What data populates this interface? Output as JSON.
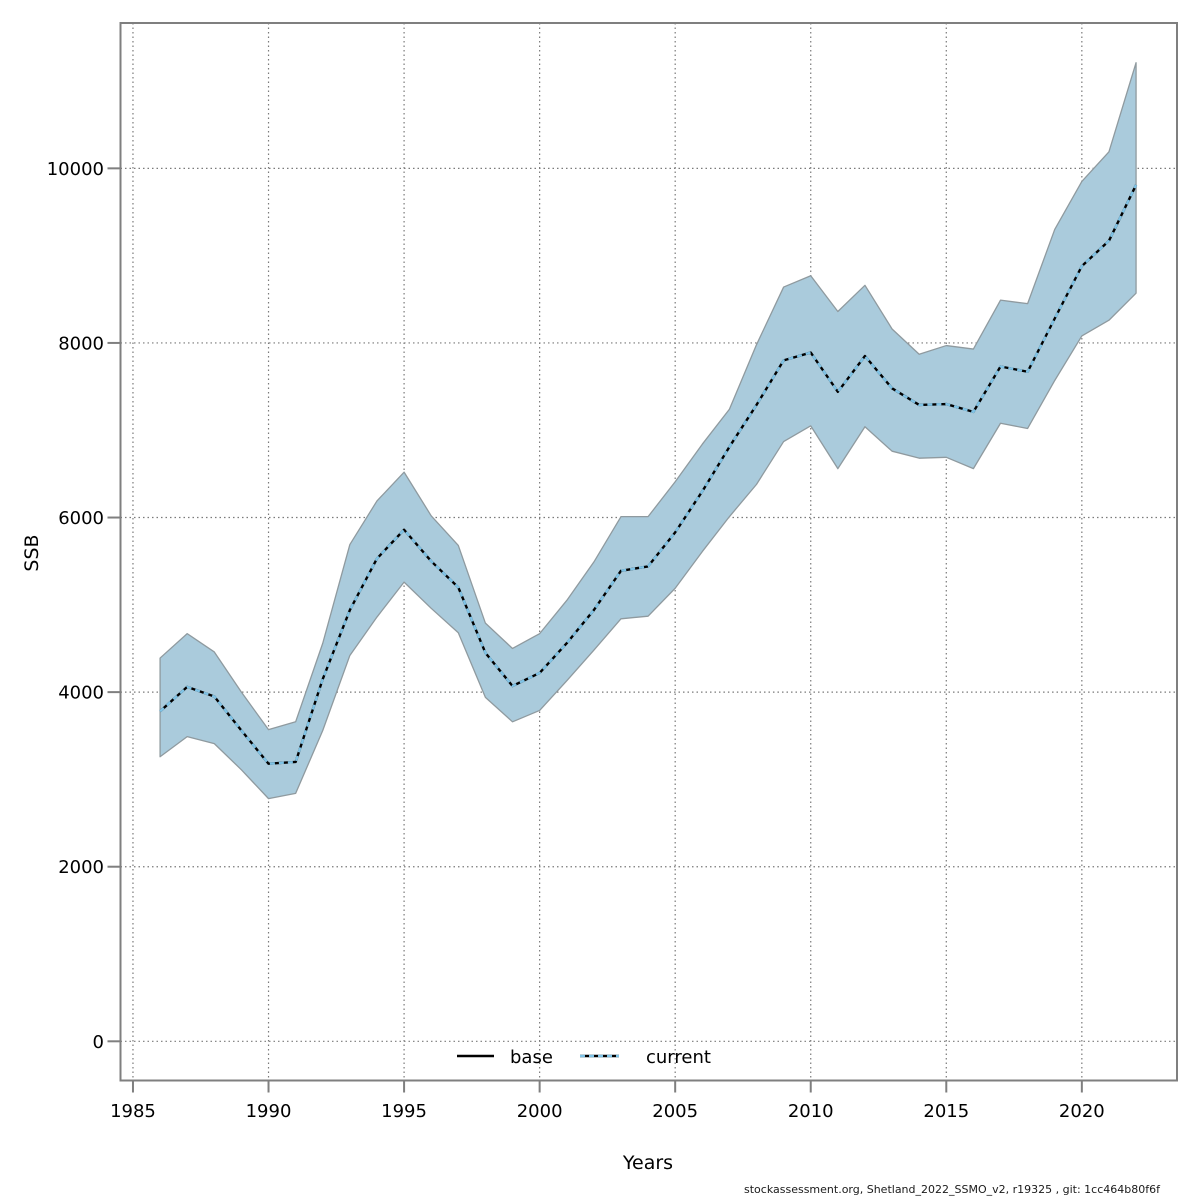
{
  "figure": {
    "footer": "stockassessment.org, Shetland_2022_SSMO_v2, r19325 , git: 1cc464b80f6f"
  },
  "legend": {
    "base_label": "base",
    "current_label": "current"
  },
  "axes": {
    "xlabel": "Years",
    "ylabel": "SSB"
  },
  "colors": {
    "band_fill": "#aacbdc",
    "band_edge": "#8f9a9f",
    "base_line": "#000000",
    "current_line": "#7fc3e6",
    "grid": "#7a7a7a",
    "frame": "#7f7f7f",
    "tick": "#7f7f7f"
  },
  "chart_data": {
    "type": "line",
    "title": "",
    "xlabel": "Years",
    "ylabel": "SSB",
    "grid": "dotted",
    "legend_position": "bottom-center",
    "x_ticks": [
      1985,
      1990,
      1995,
      2000,
      2005,
      2010,
      2015,
      2020
    ],
    "y_ticks": [
      0,
      2000,
      4000,
      6000,
      8000,
      10000
    ],
    "xlim": [
      1984.54,
      2023.51
    ],
    "ylim": [
      -449,
      11665
    ],
    "x": [
      1986,
      1987,
      1988,
      1989,
      1990,
      1991,
      1992,
      1993,
      1994,
      1995,
      1996,
      1997,
      1998,
      1999,
      2000,
      2001,
      2002,
      2003,
      2004,
      2005,
      2006,
      2007,
      2008,
      2009,
      2010,
      2011,
      2012,
      2013,
      2014,
      2015,
      2016,
      2017,
      2018,
      2019,
      2020,
      2021,
      2022
    ],
    "series": [
      {
        "name": "base",
        "style": "solid-black",
        "values": [
          3780,
          4060,
          3950,
          3560,
          3180,
          3200,
          4150,
          4940,
          5530,
          5860,
          5500,
          5200,
          4450,
          4070,
          4220,
          4560,
          4940,
          5390,
          5440,
          5830,
          6300,
          6810,
          7290,
          7800,
          7890,
          7440,
          7850,
          7480,
          7290,
          7300,
          7210,
          7730,
          7670,
          8280,
          8880,
          9170,
          9810
        ]
      },
      {
        "name": "current",
        "style": "dashed-blue",
        "values": [
          3780,
          4060,
          3950,
          3560,
          3180,
          3200,
          4150,
          4940,
          5530,
          5860,
          5500,
          5200,
          4450,
          4070,
          4220,
          4560,
          4940,
          5390,
          5440,
          5830,
          6300,
          6810,
          7290,
          7800,
          7890,
          7440,
          7850,
          7480,
          7290,
          7300,
          7210,
          7730,
          7670,
          8280,
          8880,
          9170,
          9810
        ]
      }
    ],
    "band": {
      "name": "current-confidence-interval",
      "lower": [
        3260,
        3490,
        3410,
        3110,
        2780,
        2840,
        3560,
        4420,
        4860,
        5260,
        4960,
        4680,
        3940,
        3660,
        3790,
        4130,
        4480,
        4840,
        4870,
        5190,
        5610,
        6010,
        6380,
        6870,
        7050,
        6560,
        7040,
        6760,
        6680,
        6690,
        6560,
        7080,
        7020,
        7570,
        8080,
        8260,
        8570
      ],
      "upper": [
        4390,
        4670,
        4460,
        4000,
        3570,
        3660,
        4560,
        5690,
        6190,
        6520,
        6020,
        5680,
        4790,
        4500,
        4670,
        5050,
        5490,
        6010,
        6010,
        6410,
        6840,
        7240,
        7980,
        8640,
        8770,
        8360,
        8660,
        8160,
        7870,
        7970,
        7930,
        8490,
        8450,
        9300,
        9850,
        10190,
        11210
      ]
    }
  }
}
